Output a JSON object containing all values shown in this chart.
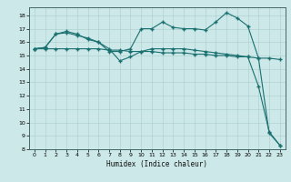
{
  "title": "",
  "xlabel": "Humidex (Indice chaleur)",
  "ylabel": "",
  "bg_color": "#cce8e8",
  "grid_major_color": "#aacccc",
  "grid_minor_color": "#bbdddd",
  "line_color": "#1a7070",
  "xlim": [
    -0.5,
    23.5
  ],
  "ylim": [
    8,
    18.6
  ],
  "yticks": [
    8,
    9,
    10,
    11,
    12,
    13,
    14,
    15,
    16,
    17,
    18
  ],
  "xticks": [
    0,
    1,
    2,
    3,
    4,
    5,
    6,
    7,
    8,
    9,
    10,
    11,
    12,
    13,
    14,
    15,
    16,
    17,
    18,
    19,
    20,
    21,
    22,
    23
  ],
  "series": [
    {
      "x": [
        0,
        1,
        2,
        3,
        4,
        5,
        6,
        7,
        8,
        9,
        10,
        11,
        12,
        13,
        14,
        15,
        16,
        17,
        18,
        19,
        20,
        21,
        22,
        23
      ],
      "y": [
        15.5,
        15.6,
        16.6,
        16.8,
        16.6,
        16.2,
        16.0,
        15.3,
        15.3,
        15.5,
        17.0,
        17.0,
        17.5,
        17.1,
        17.0,
        17.0,
        16.9,
        17.5,
        18.2,
        17.8,
        17.2,
        14.8,
        9.2,
        8.3
      ]
    },
    {
      "x": [
        0,
        1,
        2,
        3,
        4,
        5,
        6,
        7,
        8,
        9,
        10,
        11,
        12,
        13,
        14,
        15,
        16,
        17,
        18,
        19,
        20,
        21,
        22,
        23
      ],
      "y": [
        15.5,
        15.6,
        16.6,
        16.7,
        16.5,
        16.3,
        16.0,
        15.5,
        14.6,
        14.9,
        15.3,
        15.5,
        15.5,
        15.5,
        15.5,
        15.4,
        15.3,
        15.2,
        15.1,
        15.0,
        14.9,
        12.7,
        9.3,
        8.3
      ]
    },
    {
      "x": [
        0,
        1,
        2,
        3,
        4,
        5,
        6,
        7,
        8,
        9,
        10,
        11,
        12,
        13,
        14,
        15,
        16,
        17,
        18,
        19,
        20,
        21,
        22,
        23
      ],
      "y": [
        15.5,
        15.5,
        15.5,
        15.5,
        15.5,
        15.5,
        15.5,
        15.4,
        15.4,
        15.3,
        15.3,
        15.3,
        15.2,
        15.2,
        15.2,
        15.1,
        15.1,
        15.0,
        15.0,
        14.9,
        14.9,
        14.8,
        14.8,
        14.7
      ]
    }
  ],
  "marker": "+",
  "markersize": 3.0,
  "linewidth": 0.8
}
